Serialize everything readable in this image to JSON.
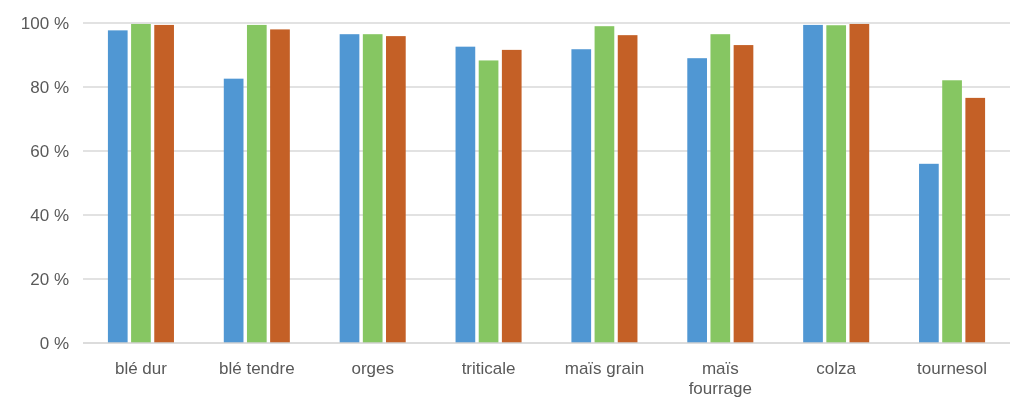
{
  "chart_data": {
    "type": "bar",
    "categories": [
      "blé dur",
      "blé tendre",
      "orges",
      "triticale",
      "maïs grain",
      "maïs fourrage",
      "colza",
      "tournesol"
    ],
    "series": [
      {
        "color": "#5097d3",
        "values": [
          97.7,
          82.6,
          96.5,
          92.6,
          91.8,
          89.0,
          99.4,
          56.0
        ]
      },
      {
        "color": "#86c662",
        "values": [
          99.7,
          99.4,
          96.5,
          88.3,
          99.0,
          96.5,
          99.3,
          82.1
        ]
      },
      {
        "color": "#c46026",
        "values": [
          99.4,
          98.0,
          95.9,
          91.6,
          96.2,
          93.1,
          99.7,
          76.6
        ]
      }
    ],
    "ylim": [
      0,
      100
    ],
    "yticks": [
      {
        "value": 0,
        "label": "0 %"
      },
      {
        "value": 20,
        "label": "20 %"
      },
      {
        "value": 40,
        "label": "40 %"
      },
      {
        "value": 60,
        "label": "60 %"
      },
      {
        "value": 80,
        "label": "80 %"
      },
      {
        "value": 100,
        "label": "100 %"
      }
    ],
    "grid": "y"
  }
}
